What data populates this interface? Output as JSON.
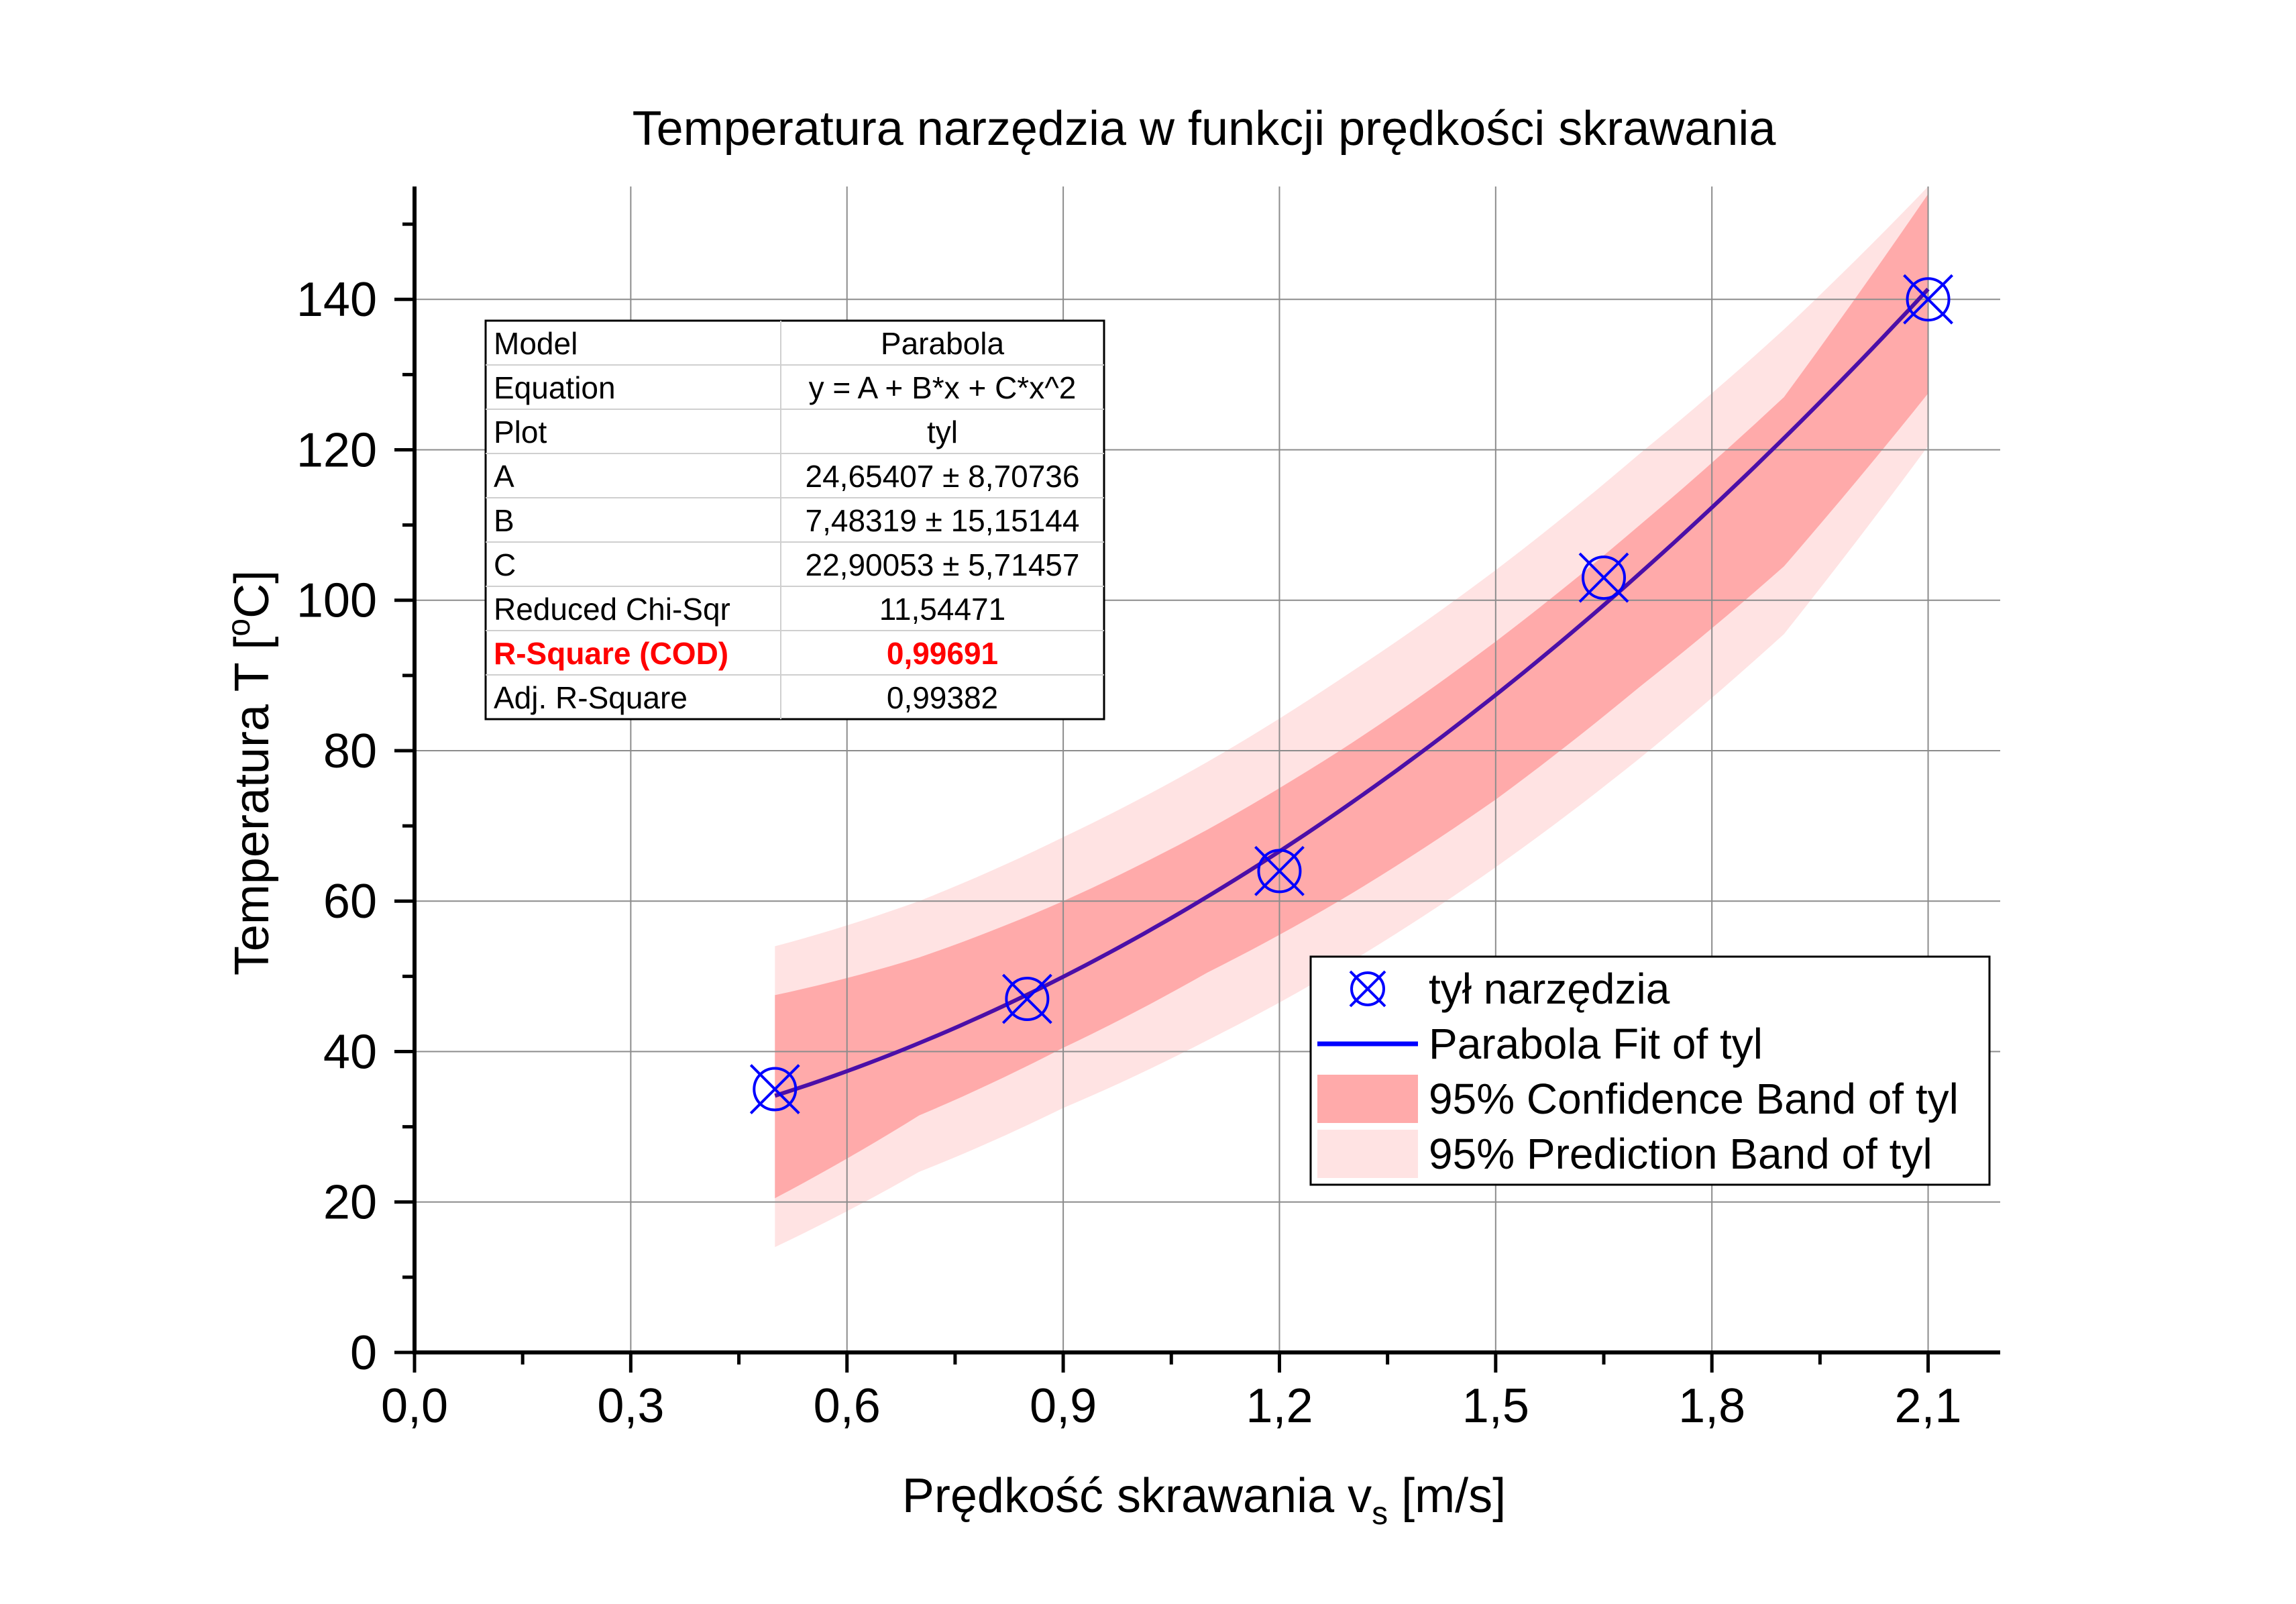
{
  "chart_data": {
    "type": "scatter",
    "title": "Temperatura narzędzia w funkcji prędkości skrawania",
    "xlabel": {
      "main": "Prędkość skrawania v",
      "sub": "s",
      "unit": " [m/s]"
    },
    "ylabel": {
      "main": "Temperatura T [",
      "sup": "o",
      "unit": "C]"
    },
    "xlim": [
      0,
      2.2
    ],
    "ylim": [
      0,
      155
    ],
    "x_ticks": [
      "0,0",
      "0,3",
      "0,6",
      "0,9",
      "1,2",
      "1,5",
      "1,8",
      "2,1"
    ],
    "x_tick_values": [
      0,
      0.3,
      0.6,
      0.9,
      1.2,
      1.5,
      1.8,
      2.1
    ],
    "y_ticks": [
      "0",
      "20",
      "40",
      "60",
      "80",
      "100",
      "120",
      "140"
    ],
    "y_tick_values": [
      0,
      20,
      40,
      60,
      80,
      100,
      120,
      140
    ],
    "grid": true,
    "series": [
      {
        "name": "tył narzędzia",
        "kind": "scatter",
        "color": "#0000ff",
        "points": [
          {
            "x": 0.5,
            "y": 35
          },
          {
            "x": 0.85,
            "y": 47
          },
          {
            "x": 1.2,
            "y": 64
          },
          {
            "x": 1.65,
            "y": 103
          },
          {
            "x": 2.1,
            "y": 140
          }
        ]
      },
      {
        "name": "Parabola Fit of tyl",
        "kind": "line",
        "color": "#4b0fa8",
        "coefficients": {
          "A": 24.65407,
          "B": 7.48319,
          "C": 22.90053
        },
        "x_range": [
          0.5,
          2.1
        ]
      },
      {
        "name": "95% Confidence Band of tyl",
        "kind": "band",
        "color": "#ffaaaa",
        "x": [
          0.5,
          0.7,
          0.9,
          1.1,
          1.3,
          1.5,
          1.7,
          1.9,
          2.1
        ],
        "upper": [
          47.5,
          52.5,
          60,
          69.5,
          81,
          94.5,
          110,
          127,
          154
        ],
        "lower": [
          20.5,
          31.5,
          40.5,
          50.5,
          61,
          73.5,
          88.5,
          104.5,
          127.5
        ]
      },
      {
        "name": "95% Prediction Band of tyl",
        "kind": "band",
        "color": "#ffe3e3",
        "x": [
          0.5,
          0.7,
          0.9,
          1.1,
          1.3,
          1.5,
          1.7,
          1.9,
          2.1
        ],
        "upper": [
          54,
          60,
          68.5,
          78.5,
          90.5,
          104,
          119.5,
          136,
          155
        ],
        "lower": [
          14,
          24,
          32.5,
          41.5,
          52,
          64.5,
          79,
          95.5,
          120.5
        ]
      }
    ],
    "legend": {
      "position": "bottom-right",
      "entries": [
        {
          "label": "tył narzędzia",
          "kind": "marker"
        },
        {
          "label": "Parabola Fit of tyl",
          "kind": "line"
        },
        {
          "label": "95% Confidence Band of tyl",
          "kind": "band-confidence"
        },
        {
          "label": "95% Prediction Band of tyl",
          "kind": "band-prediction"
        }
      ]
    },
    "fit_table": {
      "position": "top-left",
      "rows": [
        {
          "label": "Model",
          "value": "Parabola"
        },
        {
          "label": "Equation",
          "value": "y = A + B*x + C*x^2"
        },
        {
          "label": "Plot",
          "value": "tyl"
        },
        {
          "label": "A",
          "value": "24,65407 ± 8,70736"
        },
        {
          "label": "B",
          "value": "7,48319 ± 15,15144"
        },
        {
          "label": "C",
          "value": "22,90053 ± 5,71457"
        },
        {
          "label": "Reduced Chi-Sqr",
          "value": "11,54471"
        },
        {
          "label": "R-Square (COD)",
          "value": "0,99691",
          "highlight": true
        },
        {
          "label": "Adj. R-Square",
          "value": "0,99382"
        }
      ]
    }
  },
  "colors": {
    "marker": "#0000ff",
    "fit_line": "#4b0fa8",
    "fit_line_legend": "#0000ff",
    "confidence_band": "#ffaaaa",
    "prediction_band": "#ffe3e3",
    "highlight_text": "#ff0000",
    "grid": "#8c8c8c",
    "axis": "#000000"
  }
}
